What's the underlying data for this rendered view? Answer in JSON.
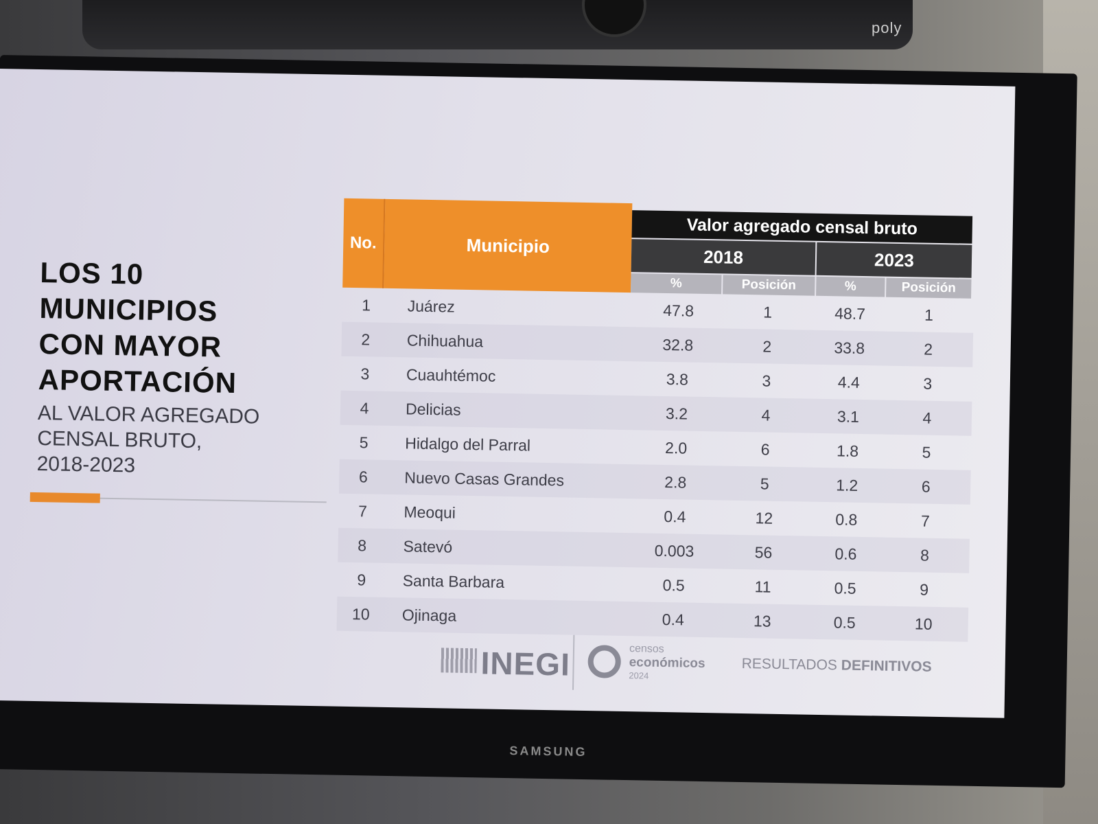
{
  "camera": {
    "brand": "poly"
  },
  "tv": {
    "brand": "SAMSUNG"
  },
  "slide": {
    "title_main": "LOS 10\nMUNICIPIOS\nCON MAYOR\nAPORTACIÓN",
    "title_sub": "AL VALOR AGREGADO\nCENSAL BRUTO,\n2018-2023",
    "accent_color": "#e8892b",
    "table": {
      "header_no": "No.",
      "header_municipio": "Municipio",
      "header_group": "Valor agregado censal bruto",
      "year_2018": "2018",
      "year_2023": "2023",
      "sub_pct_2018": "%",
      "sub_pos_2018": "Posición",
      "sub_pct_2023": "%",
      "sub_pos_2023": "Posición",
      "rows": [
        {
          "no": "1",
          "municipio": "Juárez",
          "p18": "47.8",
          "r18": "1",
          "p23": "48.7",
          "r23": "1"
        },
        {
          "no": "2",
          "municipio": "Chihuahua",
          "p18": "32.8",
          "r18": "2",
          "p23": "33.8",
          "r23": "2"
        },
        {
          "no": "3",
          "municipio": "Cuauhtémoc",
          "p18": "3.8",
          "r18": "3",
          "p23": "4.4",
          "r23": "3"
        },
        {
          "no": "4",
          "municipio": "Delicias",
          "p18": "3.2",
          "r18": "4",
          "p23": "3.1",
          "r23": "4"
        },
        {
          "no": "5",
          "municipio": "Hidalgo del Parral",
          "p18": "2.0",
          "r18": "6",
          "p23": "1.8",
          "r23": "5"
        },
        {
          "no": "6",
          "municipio": "Nuevo Casas Grandes",
          "p18": "2.8",
          "r18": "5",
          "p23": "1.2",
          "r23": "6"
        },
        {
          "no": "7",
          "municipio": "Meoqui",
          "p18": "0.4",
          "r18": "12",
          "p23": "0.8",
          "r23": "7"
        },
        {
          "no": "8",
          "municipio": "Satevó",
          "p18": "0.003",
          "r18": "56",
          "p23": "0.6",
          "r23": "8"
        },
        {
          "no": "9",
          "municipio": "Santa Barbara",
          "p18": "0.5",
          "r18": "11",
          "p23": "0.5",
          "r23": "9"
        },
        {
          "no": "10",
          "municipio": "Ojinaga",
          "p18": "0.4",
          "r18": "13",
          "p23": "0.5",
          "r23": "10"
        }
      ]
    },
    "footer": {
      "inegi": "INEGI",
      "censos_line1": "censos",
      "censos_line2": "económicos",
      "censos_line3": "2024",
      "resultados_a": "RESULTADOS",
      "resultados_b": "DEFINITIVOS"
    }
  }
}
